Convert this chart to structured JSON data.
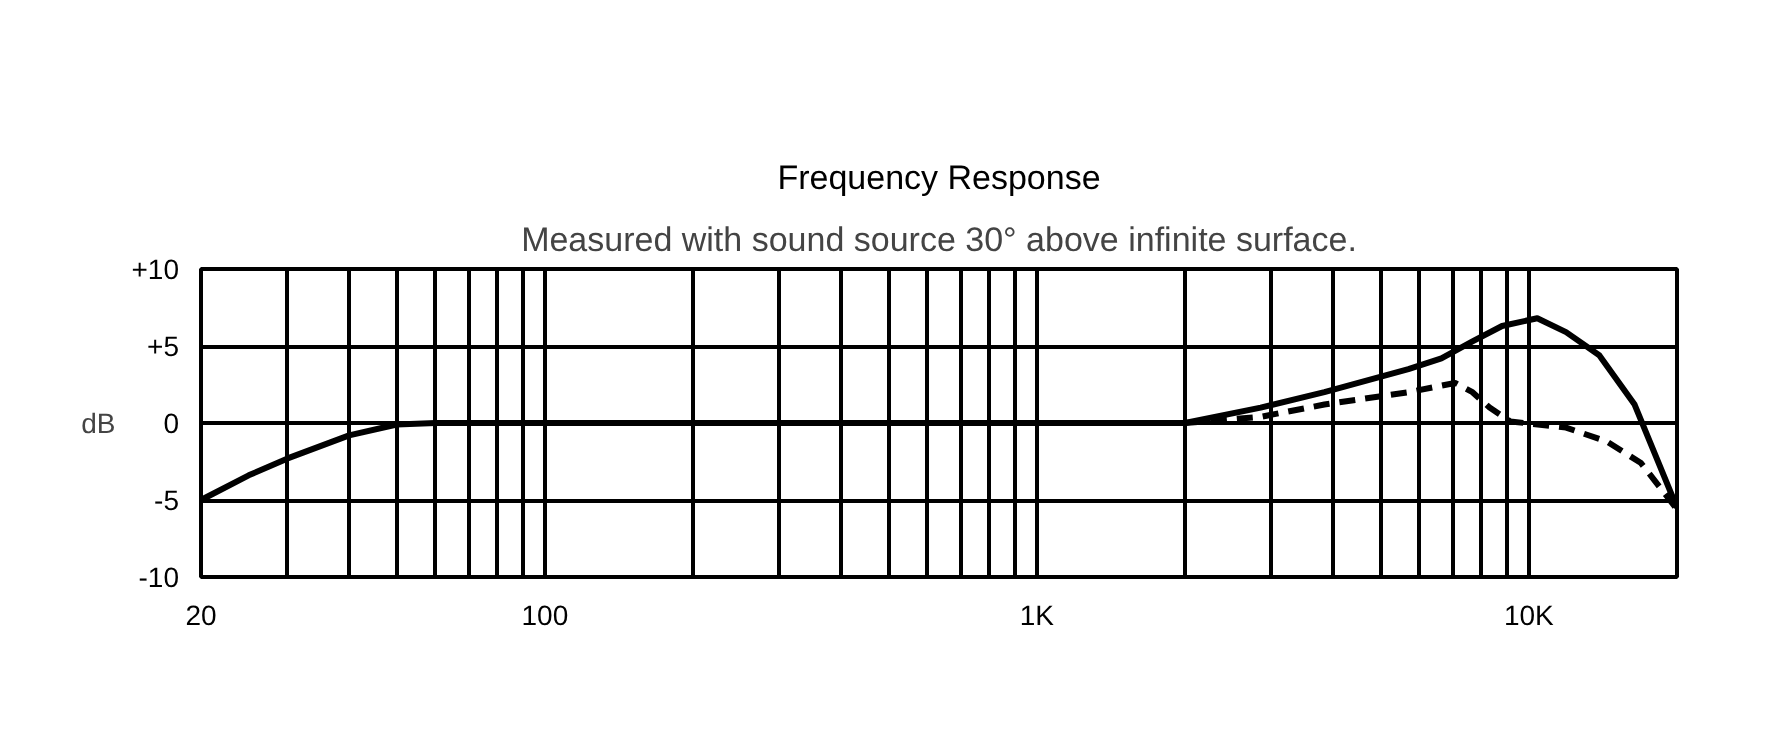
{
  "chart_data": {
    "type": "line",
    "title": "Frequency Response",
    "subtitle": "Measured with sound source 30° above infinite surface.",
    "ylabel": "dB",
    "log": "x",
    "grid": true,
    "xlim": [
      20,
      20000
    ],
    "ylim": [
      -10,
      10
    ],
    "xticks": [
      20,
      {
        "value": 30,
        "label": null
      },
      {
        "value": 40,
        "label": null
      },
      {
        "value": 50,
        "label": null
      },
      {
        "value": 60,
        "label": null
      },
      {
        "value": 70,
        "label": null
      },
      {
        "value": 80,
        "label": null
      },
      {
        "value": 90,
        "label": null
      },
      100,
      {
        "value": 200,
        "label": null
      },
      {
        "value": 300,
        "label": null
      },
      {
        "value": 400,
        "label": null
      },
      {
        "value": 500,
        "label": null
      },
      {
        "value": 600,
        "label": null
      },
      {
        "value": 700,
        "label": null
      },
      {
        "value": 800,
        "label": null
      },
      {
        "value": 900,
        "label": null
      },
      {
        "value": 1000,
        "label": "1K"
      },
      {
        "value": 2000,
        "label": null
      },
      {
        "value": 3000,
        "label": null
      },
      {
        "value": 4000,
        "label": null
      },
      {
        "value": 5000,
        "label": null
      },
      {
        "value": 6000,
        "label": null
      },
      {
        "value": 7000,
        "label": null
      },
      {
        "value": 8000,
        "label": null
      },
      {
        "value": 9000,
        "label": null
      },
      {
        "value": 10000,
        "label": "10K"
      },
      {
        "value": 20000,
        "label": null
      }
    ],
    "yticks": [
      {
        "value": 10,
        "label": "+10"
      },
      {
        "value": 5,
        "label": "+5"
      },
      0,
      {
        "value": -5,
        "label": "-5"
      },
      {
        "value": -10,
        "label": "-10"
      }
    ],
    "series": [
      {
        "color": "#000000",
        "line_style": "solid",
        "x": [
          20,
          25,
          30,
          40,
          50,
          60,
          2000,
          2850,
          3840,
          5690,
          6640,
          7680,
          8820,
          10400,
          11900,
          13900,
          16400,
          20000
        ],
        "values": [
          -5,
          -3.4,
          -2.3,
          -0.8,
          -0.1,
          0,
          0,
          1.0,
          2.0,
          3.5,
          4.2,
          5.3,
          6.3,
          6.8,
          5.9,
          4.4,
          1.2,
          -5.5
        ]
      },
      {
        "color": "#000000",
        "line_style": "dashed",
        "x": [
          2000,
          2850,
          3840,
          5690,
          7080,
          7680,
          8320,
          9170,
          11900,
          14400,
          16900,
          20000
        ],
        "values": [
          0,
          0.4,
          1.2,
          2.0,
          2.6,
          2.0,
          1.0,
          0.1,
          -0.3,
          -1.2,
          -2.6,
          -5.6
        ]
      }
    ]
  }
}
